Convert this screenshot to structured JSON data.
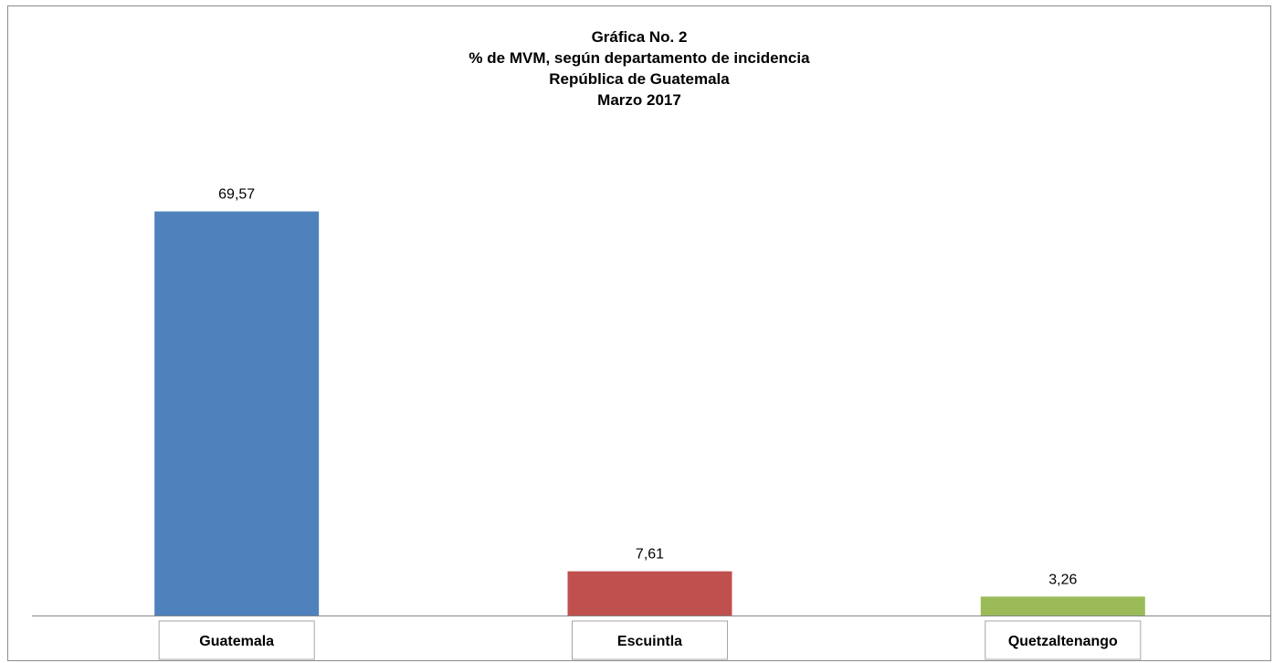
{
  "chart_data": {
    "type": "bar",
    "title_lines": [
      "Gráfica No. 2",
      "% de MVM, según departamento de incidencia",
      "República de Guatemala",
      "Marzo 2017"
    ],
    "categories": [
      "Guatemala",
      "Escuintla",
      "Quetzaltenango"
    ],
    "values": [
      69.57,
      7.61,
      3.26
    ],
    "value_labels": [
      "69,57",
      "7,61",
      "3,26"
    ],
    "colors": [
      "#4f81bd",
      "#c0504d",
      "#9bbb59"
    ],
    "xlabel": "",
    "ylabel": "",
    "ylim": [
      0,
      75
    ],
    "grid": false,
    "legend": "none"
  }
}
